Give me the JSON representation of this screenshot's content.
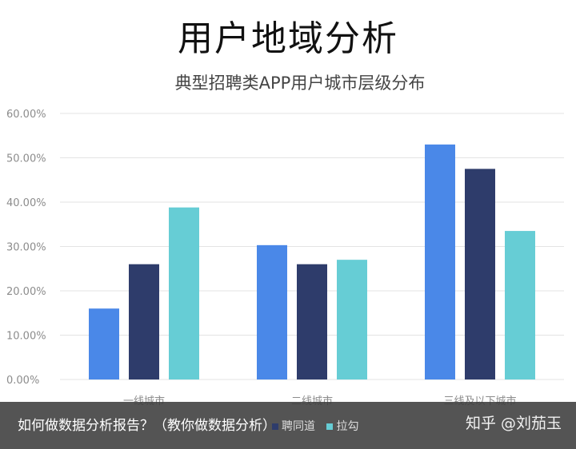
{
  "page_title": "用户地域分析",
  "overlay": {
    "caption": "如何做数据分析报告？（教你做数据分析）",
    "watermark": "知乎 @刘茄玉"
  },
  "colors": {
    "series1": "#4A88E8",
    "series2": "#2E3C6B",
    "series3": "#66CDD5",
    "grid": "#E3E3E3",
    "axis_text": "#8C8C8C"
  },
  "chart_data": {
    "type": "bar",
    "title": "典型招聘类APP用户城市层级分布",
    "categories": [
      "一线城市",
      "二线城市",
      "三线及以下城市"
    ],
    "series": [
      {
        "name": "",
        "values": [
          16.0,
          30.3,
          53.0
        ]
      },
      {
        "name": "聘同道",
        "values": [
          26.0,
          26.0,
          47.5
        ]
      },
      {
        "name": "拉勾",
        "values": [
          38.8,
          27.0,
          33.5
        ]
      }
    ],
    "yticks": [
      "0.00%",
      "10.00%",
      "20.00%",
      "30.00%",
      "40.00%",
      "50.00%",
      "60.00%"
    ],
    "ylim": [
      0,
      60
    ],
    "grid": true,
    "legend": "bottom"
  }
}
